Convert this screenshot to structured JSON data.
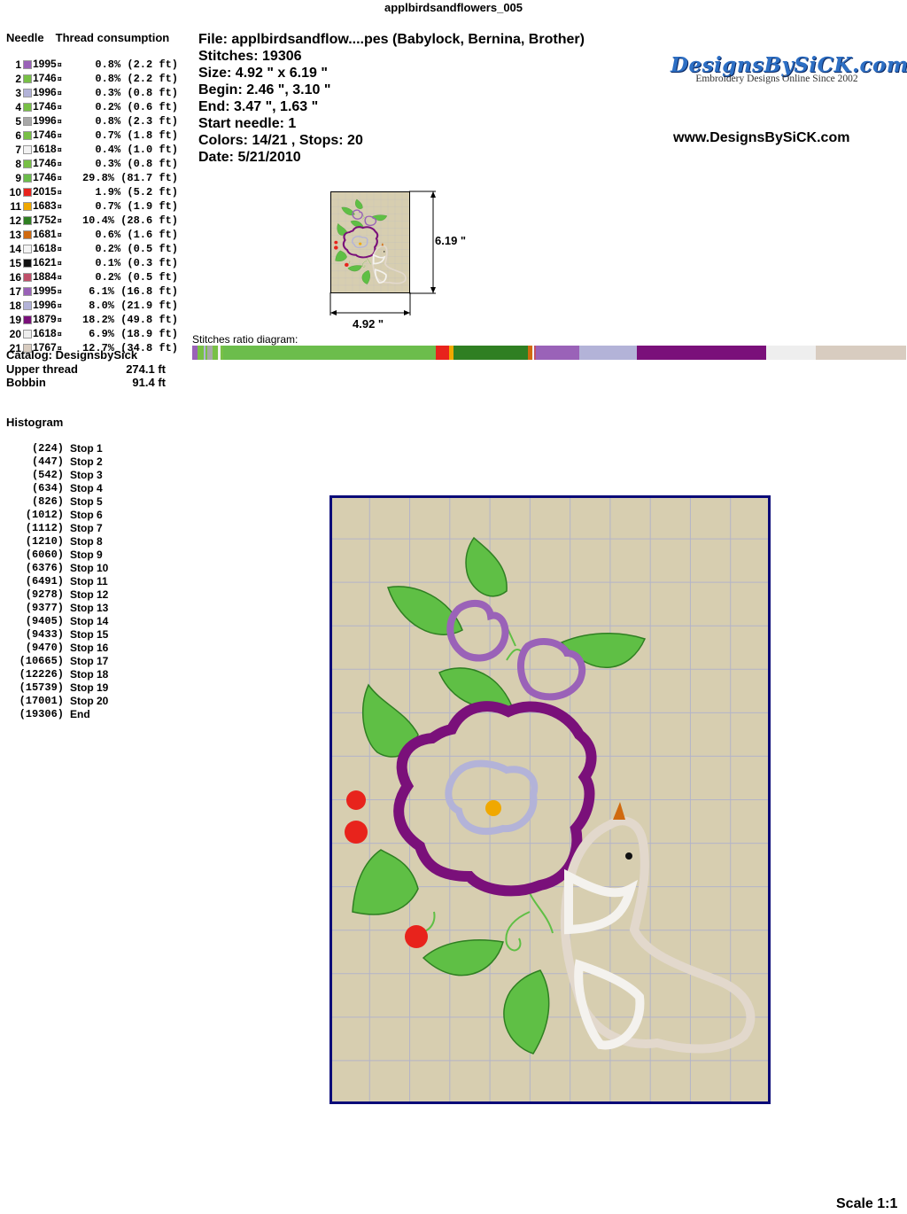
{
  "page_title": "applbirdsandflowers_005",
  "needle_header": {
    "needle": "Needle",
    "thread": "Thread consumption"
  },
  "needles": [
    {
      "n": "1",
      "color": "#9a62b8",
      "code": "1995",
      "mark": "¤",
      "pct": "0.8% (2.2 ft)"
    },
    {
      "n": "2",
      "color": "#78c046",
      "code": "1746",
      "mark": "¤",
      "pct": "0.8% (2.2 ft)"
    },
    {
      "n": "3",
      "color": "#b3b3d8",
      "code": "1996",
      "mark": "¤",
      "pct": "0.3% (0.8 ft)"
    },
    {
      "n": "4",
      "color": "#78c046",
      "code": "1746",
      "mark": "¤",
      "pct": "0.2% (0.6 ft)"
    },
    {
      "n": "5",
      "color": "#a8a8a8",
      "code": "1996",
      "mark": "¤",
      "pct": "0.8% (2.3 ft)"
    },
    {
      "n": "6",
      "color": "#78c046",
      "code": "1746",
      "mark": "¤",
      "pct": "0.7% (1.8 ft)"
    },
    {
      "n": "7",
      "color": "#f2f2f2",
      "code": "1618",
      "mark": "¤",
      "pct": "0.4% (1.0 ft)"
    },
    {
      "n": "8",
      "color": "#78c046",
      "code": "1746",
      "mark": "¤",
      "pct": "0.3% (0.8 ft)"
    },
    {
      "n": "9",
      "color": "#6cbd4c",
      "code": "1746",
      "mark": "¤",
      "pct": "29.8% (81.7 ft)"
    },
    {
      "n": "10",
      "color": "#e8231c",
      "code": "2015",
      "mark": "¤",
      "pct": "1.9% (5.2 ft)"
    },
    {
      "n": "11",
      "color": "#f0a800",
      "code": "1683",
      "mark": "¤",
      "pct": "0.7% (1.9 ft)"
    },
    {
      "n": "12",
      "color": "#2f7f22",
      "code": "1752",
      "mark": "¤",
      "pct": "10.4% (28.6 ft)"
    },
    {
      "n": "13",
      "color": "#d06a10",
      "code": "1681",
      "mark": "¤",
      "pct": "0.6% (1.6 ft)"
    },
    {
      "n": "14",
      "color": "#f4f4f4",
      "code": "1618",
      "mark": "¤",
      "pct": "0.2% (0.5 ft)"
    },
    {
      "n": "15",
      "color": "#111111",
      "code": "1621",
      "mark": "¤",
      "pct": "0.1% (0.3 ft)"
    },
    {
      "n": "16",
      "color": "#c0506a",
      "code": "1884",
      "mark": "¤",
      "pct": "0.2% (0.5 ft)"
    },
    {
      "n": "17",
      "color": "#9a62b8",
      "code": "1995",
      "mark": "¤",
      "pct": "6.1% (16.8 ft)"
    },
    {
      "n": "18",
      "color": "#b3b3d8",
      "code": "1996",
      "mark": "¤",
      "pct": "8.0% (21.9 ft)"
    },
    {
      "n": "19",
      "color": "#7a107a",
      "code": "1879",
      "mark": "¤",
      "pct": "18.2% (49.8 ft)"
    },
    {
      "n": "20",
      "color": "#eeeeee",
      "code": "1618",
      "mark": "¤",
      "pct": "6.9% (18.9 ft)"
    },
    {
      "n": "21",
      "color": "#d8ccc0",
      "code": "1767",
      "mark": "¤",
      "pct": "12.7% (34.8 ft)"
    }
  ],
  "catalog": {
    "catalog": "Catalog: DesignsbySick",
    "upper_label": "Upper thread",
    "upper_value": "274.1 ft",
    "bobbin_label": "Bobbin",
    "bobbin_value": "91.4 ft"
  },
  "histogram": {
    "title": "Histogram",
    "rows": [
      {
        "count": "(224)",
        "label": "Stop 1"
      },
      {
        "count": "(447)",
        "label": "Stop 2"
      },
      {
        "count": "(542)",
        "label": "Stop 3"
      },
      {
        "count": "(634)",
        "label": "Stop 4"
      },
      {
        "count": "(826)",
        "label": "Stop 5"
      },
      {
        "count": "(1012)",
        "label": "Stop 6"
      },
      {
        "count": "(1112)",
        "label": "Stop 7"
      },
      {
        "count": "(1210)",
        "label": "Stop 8"
      },
      {
        "count": "(6060)",
        "label": "Stop 9"
      },
      {
        "count": "(6376)",
        "label": "Stop 10"
      },
      {
        "count": "(6491)",
        "label": "Stop 11"
      },
      {
        "count": "(9278)",
        "label": "Stop 12"
      },
      {
        "count": "(9377)",
        "label": "Stop 13"
      },
      {
        "count": "(9405)",
        "label": "Stop 14"
      },
      {
        "count": "(9433)",
        "label": "Stop 15"
      },
      {
        "count": "(9470)",
        "label": "Stop 16"
      },
      {
        "count": "(10665)",
        "label": "Stop 17"
      },
      {
        "count": "(12226)",
        "label": "Stop 18"
      },
      {
        "count": "(15739)",
        "label": "Stop 19"
      },
      {
        "count": "(17001)",
        "label": "Stop 20"
      },
      {
        "count": "(19306)",
        "label": "End"
      }
    ]
  },
  "info": {
    "file": "File: applbirdsandflow....pes  (Babylock, Bernina, Brother)",
    "stitches": "Stitches: 19306",
    "size": "Size: 4.92 \" x 6.19 \"",
    "begin": "Begin: 2.46 \", 3.10 \"",
    "end": "End: 3.47 \", 1.63 \"",
    "start_needle": "Start needle: 1",
    "colors": "Colors: 14/21 , Stops: 20",
    "date": "Date: 5/21/2010"
  },
  "logo": {
    "main": "DesignsBySiCK.com",
    "sub": "Embroidery Designs Online Since 2002"
  },
  "website": "www.DesignsBySiCK.com",
  "thumbnail": {
    "height_label": "6.19 \"",
    "width_label": "4.92 \""
  },
  "ratio_label": "Stitches ratio diagram:",
  "ratio_segments": [
    0.8,
    0.8,
    0.3,
    0.2,
    0.8,
    0.7,
    0.4,
    0.3,
    29.8,
    1.9,
    0.7,
    10.4,
    0.6,
    0.2,
    0.1,
    0.2,
    6.1,
    8.0,
    18.2,
    6.9,
    12.7
  ],
  "colors": {
    "fabric": "#d7ceb0",
    "grid": "#b4b4c8",
    "frame": "#0a0a78",
    "leaf": "#5fbf45",
    "leaf_dark": "#2f7f22",
    "violet": "#9a62b8",
    "lavender": "#b3b3d8",
    "plum": "#7a107a",
    "berry": "#e8231c",
    "center": "#f0a800",
    "bird": "#e2d8cc",
    "bird_light": "#f4f2ee"
  },
  "scale": "Scale 1:1"
}
